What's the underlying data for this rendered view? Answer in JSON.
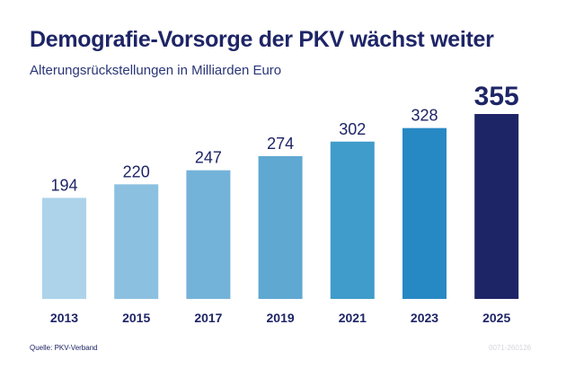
{
  "title": "Demografie-Vorsorge der PKV wächst weiter",
  "subtitle": "Alterungsrückstellungen in Milliarden Euro",
  "source": "Quelle: PKV-Verband",
  "code": "0071-260126",
  "chart_data": {
    "type": "bar",
    "categories": [
      "2013",
      "2015",
      "2017",
      "2019",
      "2021",
      "2023",
      "2025"
    ],
    "values": [
      194,
      220,
      247,
      274,
      302,
      328,
      355
    ],
    "value_labels": [
      "194",
      "220",
      "247",
      "274",
      "302",
      "328",
      "355"
    ],
    "colors": [
      "#acd3ea",
      "#8cc0e0",
      "#74b3d9",
      "#5ea8d2",
      "#409cca",
      "#2789c4",
      "#1e2566"
    ],
    "highlight_index": 6,
    "ylim": [
      0,
      355
    ],
    "grid": false
  }
}
